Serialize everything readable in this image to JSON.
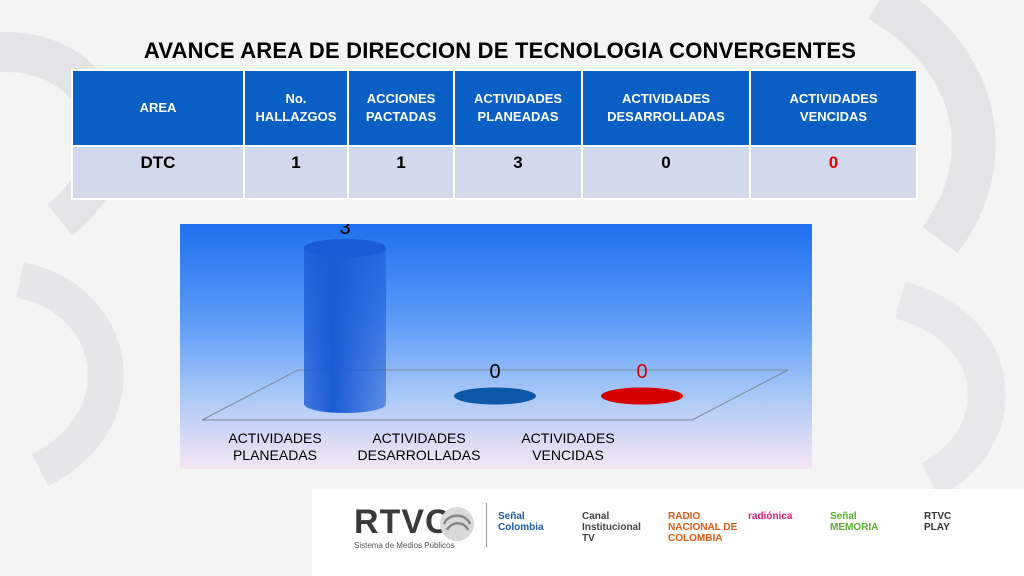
{
  "title": "AVANCE AREA DE DIRECCION DE TECNOLOGIA CONVERGENTES",
  "table": {
    "headers": [
      [
        "AREA"
      ],
      [
        "No.",
        "HALLAZGOS"
      ],
      [
        "ACCIONES",
        "PACTADAS"
      ],
      [
        "ACTIVIDADES",
        "PLANEADAS"
      ],
      [
        "ACTIVIDADES",
        "DESARROLLADAS"
      ],
      [
        "ACTIVIDADES",
        "VENCIDAS"
      ]
    ],
    "row": [
      "DTC",
      "1",
      "1",
      "3",
      "0",
      "0"
    ]
  },
  "chart_data": {
    "type": "bar",
    "title": "",
    "categories": [
      [
        "ACTIVIDADES",
        "PLANEADAS"
      ],
      [
        "ACTIVIDADES",
        "DESARROLLADAS"
      ],
      [
        "ACTIVIDADES",
        "VENCIDAS"
      ]
    ],
    "values": [
      3,
      0,
      0
    ],
    "data_labels": [
      "3",
      "0",
      "0"
    ],
    "colors": [
      "#1a5bd6",
      "#0d57a8",
      "#d40000"
    ],
    "label_colors": [
      "#000000",
      "#000000",
      "#d40000"
    ],
    "ylim": [
      0,
      3
    ],
    "grid": false,
    "style": "3d-cylinder"
  },
  "logos": {
    "main": "RTVC",
    "main_sub": "Sistema de Medios Públicos",
    "others": [
      {
        "top": "Señal",
        "bottom": "Colombia",
        "color": "#1e5aa8"
      },
      {
        "top": "Canal",
        "bottom": "Institucional TV",
        "color": "#444444"
      },
      {
        "top": "RADIO",
        "bottom": "NACIONAL DE COLOMBIA",
        "color": "#e05a10"
      },
      {
        "top": "",
        "bottom": "radiónica",
        "color": "#e0206e"
      },
      {
        "top": "Señal",
        "bottom": "MEMORIA",
        "color": "#58b030"
      },
      {
        "top": "RTVC",
        "bottom": "PLAY",
        "color": "#333333"
      }
    ]
  },
  "colors": {
    "header_bg": "#0a5fc4",
    "row_bg": "#d2d9ec",
    "alert": "#e00000"
  }
}
